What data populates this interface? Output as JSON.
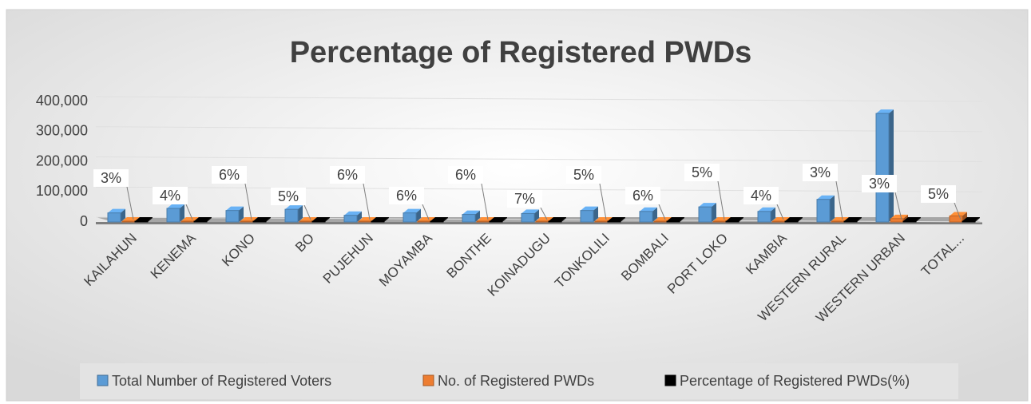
{
  "chart_data": {
    "type": "bar3d",
    "title": "Percentage of Registered PWDs",
    "categories": [
      "KAILAHUN",
      "KENEMA",
      "KONO",
      "BO",
      "PUJEHUN",
      "MOYAMBA",
      "BONTHE",
      "KOINADUGU",
      "TONKOLILI",
      "BOMBALI",
      "PORT LOKO",
      "KAMBIA",
      "WESTERN RURAL",
      "WESTERN URBAN",
      "TOTAL..."
    ],
    "series": [
      {
        "name": "Total Number of Registered Voters",
        "color": "#5b9bd5",
        "values": [
          30000,
          45000,
          38000,
          42000,
          22000,
          30000,
          25000,
          28000,
          38000,
          35000,
          50000,
          35000,
          75000,
          360000,
          null
        ]
      },
      {
        "name": "No. of Registered  PWDs",
        "color": "#ed7d31",
        "values": [
          1000,
          1800,
          2300,
          2100,
          1300,
          1800,
          1500,
          2000,
          1900,
          2100,
          2500,
          1400,
          2300,
          11000,
          20000
        ]
      },
      {
        "name": "Percentage of Registered PWDs(%)",
        "color": "#000000",
        "values": [
          3,
          4,
          6,
          5,
          6,
          6,
          6,
          7,
          5,
          6,
          5,
          4,
          3,
          3,
          5
        ],
        "value_labels": [
          "3%",
          "4%",
          "6%",
          "5%",
          "6%",
          "6%",
          "6%",
          "7%",
          "5%",
          "6%",
          "5%",
          "4%",
          "3%",
          "3%",
          "5%"
        ]
      }
    ],
    "ylim": [
      0,
      400000
    ],
    "yticks": [
      0,
      {
        "value": 100000,
        "label": "100,000"
      },
      {
        "value": 200000,
        "label": "200,000"
      },
      {
        "value": 300000,
        "label": "300,000"
      },
      {
        "value": 400000,
        "label": "400,000"
      }
    ]
  }
}
